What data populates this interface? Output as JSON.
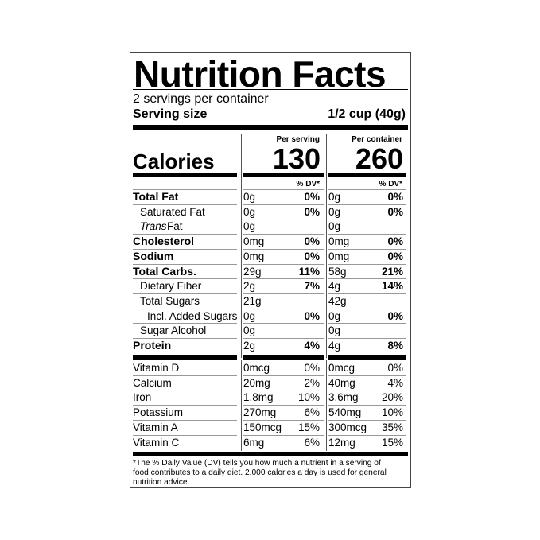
{
  "title": "Nutrition Facts",
  "servings": "2 servings per container",
  "serving_size": {
    "label": "Serving size",
    "value": "1/2 cup (40g)"
  },
  "calories": {
    "label": "Calories",
    "per_serving_header": "Per serving",
    "per_serving": 130,
    "per_container_header": "Per container",
    "per_container": 260
  },
  "dv_header": "% DV*",
  "nutrients": [
    {
      "name": "Total Fat",
      "bold": true,
      "indent": 0,
      "serving": "0g",
      "serving_dv": "0%",
      "container": "0g",
      "container_dv": "0%"
    },
    {
      "name": "Saturated Fat",
      "bold": false,
      "indent": 1,
      "serving": "0g",
      "serving_dv": "0%",
      "container": "0g",
      "container_dv": "0%"
    },
    {
      "name_italic": "Trans",
      "name": "Fat",
      "bold": false,
      "indent": 1,
      "serving": "0g",
      "serving_dv": null,
      "container": "0g",
      "container_dv": null
    },
    {
      "name": "Cholesterol",
      "bold": true,
      "indent": 0,
      "serving": "0mg",
      "serving_dv": "0%",
      "container": "0mg",
      "container_dv": "0%"
    },
    {
      "name": "Sodium",
      "bold": true,
      "indent": 0,
      "serving": "0mg",
      "serving_dv": "0%",
      "container": "0mg",
      "container_dv": "0%"
    },
    {
      "name": "Total Carbs.",
      "bold": true,
      "indent": 0,
      "serving": "29g",
      "serving_dv": "11%",
      "container": "58g",
      "container_dv": "21%"
    },
    {
      "name": "Dietary Fiber",
      "bold": false,
      "indent": 1,
      "serving": "2g",
      "serving_dv": "7%",
      "container": "4g",
      "container_dv": "14%"
    },
    {
      "name": "Total Sugars",
      "bold": false,
      "indent": 1,
      "serving": "21g",
      "serving_dv": null,
      "container": "42g",
      "container_dv": null
    },
    {
      "name": "Incl. Added Sugars",
      "bold": false,
      "indent": 2,
      "serving": "0g",
      "serving_dv": "0%",
      "container": "0g",
      "container_dv": "0%"
    },
    {
      "name": "Sugar Alcohol",
      "bold": false,
      "indent": 1,
      "serving": "0g",
      "serving_dv": null,
      "container": "0g",
      "container_dv": null
    },
    {
      "name": "Protein",
      "bold": true,
      "indent": 0,
      "serving": "2g",
      "serving_dv": "4%",
      "container": "4g",
      "container_dv": "8%"
    }
  ],
  "vitamins": [
    {
      "name": "Vitamin D",
      "serving": "0mcg",
      "serving_dv": "0%",
      "container": "0mcg",
      "container_dv": "0%"
    },
    {
      "name": "Calcium",
      "serving": "20mg",
      "serving_dv": "2%",
      "container": "40mg",
      "container_dv": "4%"
    },
    {
      "name": "Iron",
      "serving": "1.8mg",
      "serving_dv": "10%",
      "container": "3.6mg",
      "container_dv": "20%"
    },
    {
      "name": "Potassium",
      "serving": "270mg",
      "serving_dv": "6%",
      "container": "540mg",
      "container_dv": "10%"
    },
    {
      "name": "Vitamin A",
      "serving": "150mcg",
      "serving_dv": "15%",
      "container": "300mcg",
      "container_dv": "35%"
    },
    {
      "name": "Vitamin C",
      "serving": "6mg",
      "serving_dv": "6%",
      "container": "12mg",
      "container_dv": "15%"
    }
  ],
  "footnote": "*The % Daily Value (DV) tells you how much a nutrient in a serving of food contributes to a daily diet. 2,000 calories a day is used for general nutrition advice."
}
